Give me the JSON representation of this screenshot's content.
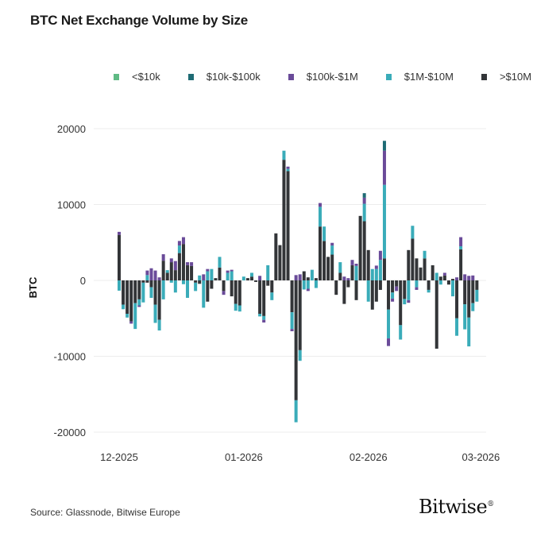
{
  "title": "BTC Net Exchange Volume by Size",
  "source": "Source: Glassnode, Bitwise Europe",
  "logo": "Bitwise",
  "chart_data": {
    "type": "bar",
    "stacked": true,
    "title": "BTC Net Exchange Volume by Size",
    "xlabel": "",
    "ylabel": "BTC",
    "ylim": [
      -20000,
      20000
    ],
    "yticks": [
      20000,
      10000,
      0,
      -10000,
      -20000
    ],
    "xticks": [
      {
        "label": "12-2025",
        "date": "2025-12-01"
      },
      {
        "label": "01-2026",
        "date": "2026-01-01"
      },
      {
        "label": "02-2026",
        "date": "2026-02-01"
      },
      {
        "label": "03-2026",
        "date": "2026-03-01"
      }
    ],
    "grid": "horizontal",
    "legend": "top",
    "categories": [
      "2025-12-01",
      "2025-12-02",
      "2025-12-03",
      "2025-12-04",
      "2025-12-05",
      "2025-12-06",
      "2025-12-07",
      "2025-12-08",
      "2025-12-09",
      "2025-12-10",
      "2025-12-11",
      "2025-12-12",
      "2025-12-13",
      "2025-12-14",
      "2025-12-15",
      "2025-12-16",
      "2025-12-17",
      "2025-12-18",
      "2025-12-19",
      "2025-12-20",
      "2025-12-21",
      "2025-12-22",
      "2025-12-23",
      "2025-12-24",
      "2025-12-25",
      "2025-12-26",
      "2025-12-27",
      "2025-12-28",
      "2025-12-29",
      "2025-12-30",
      "2025-12-31",
      "2026-01-01",
      "2026-01-02",
      "2026-01-03",
      "2026-01-04",
      "2026-01-05",
      "2026-01-06",
      "2026-01-07",
      "2026-01-08",
      "2026-01-09",
      "2026-01-10",
      "2026-01-11",
      "2026-01-12",
      "2026-01-13",
      "2026-01-14",
      "2026-01-15",
      "2026-01-16",
      "2026-01-17",
      "2026-01-18",
      "2026-01-19",
      "2026-01-20",
      "2026-01-21",
      "2026-01-22",
      "2026-01-23",
      "2026-01-24",
      "2026-01-25",
      "2026-01-26",
      "2026-01-27",
      "2026-01-28",
      "2026-01-29",
      "2026-01-30",
      "2026-01-31",
      "2026-02-01",
      "2026-02-02",
      "2026-02-03",
      "2026-02-04",
      "2026-02-05",
      "2026-02-06",
      "2026-02-07",
      "2026-02-08",
      "2026-02-09",
      "2026-02-10",
      "2026-02-11",
      "2026-02-12",
      "2026-02-13",
      "2026-02-14",
      "2026-02-15",
      "2026-02-16",
      "2026-02-17",
      "2026-02-18",
      "2026-02-19",
      "2026-02-20",
      "2026-02-21",
      "2026-02-22",
      "2026-02-23",
      "2026-02-24",
      "2026-02-25",
      "2026-02-26",
      "2026-02-27",
      "2026-02-28"
    ],
    "series": [
      {
        "name": ">$10M",
        "color": "#333538",
        "values": [
          6000,
          -3200,
          -4400,
          -5400,
          -3000,
          -2500,
          -300,
          -300,
          -900,
          -3200,
          -5200,
          2600,
          1000,
          2400,
          1350,
          3600,
          4800,
          2000,
          1900,
          -300,
          -450,
          0,
          -2800,
          -1100,
          300,
          1700,
          -1400,
          0,
          -2100,
          -3100,
          -3300,
          0,
          300,
          500,
          -200,
          -4400,
          -4700,
          -700,
          -1600,
          6200,
          4650,
          15900,
          14400,
          -4200,
          -15800,
          -9200,
          1200,
          400,
          0,
          300,
          7100,
          5200,
          3100,
          3400,
          -1900,
          1000,
          -3100,
          -900,
          2000,
          -2600,
          8500,
          7800,
          4000,
          -3850,
          -2800,
          -1250,
          2900,
          -3850,
          -1600,
          -800,
          -5900,
          -2450,
          4000,
          5500,
          2900,
          1700,
          2900,
          -1250,
          2000,
          -9000,
          500,
          650,
          -550,
          200,
          -5000,
          4100,
          -3150,
          -4900,
          -3000,
          -1250
        ]
      },
      {
        "name": "$1M-$10M",
        "color": "#3aacb9",
        "values": [
          -1350,
          -600,
          -500,
          0,
          -3400,
          -800,
          -2600,
          700,
          -1400,
          -2400,
          -1400,
          -2500,
          350,
          -300,
          -1600,
          1000,
          -500,
          -2300,
          0,
          -1100,
          650,
          -3600,
          1200,
          1500,
          0,
          1400,
          0,
          1000,
          1200,
          -900,
          -800,
          500,
          0,
          500,
          0,
          -350,
          -500,
          2000,
          -1000,
          0,
          0,
          1200,
          300,
          -2200,
          -2900,
          -1400,
          -1200,
          -1100,
          1400,
          -1000,
          2600,
          1900,
          0,
          1200,
          0,
          1400,
          0,
          0,
          0,
          1900,
          0,
          2300,
          -2800,
          1500,
          1500,
          2700,
          9700,
          -3800,
          -800,
          0,
          -1900,
          -700,
          -2600,
          1700,
          -900,
          0,
          1000,
          -350,
          0,
          1000,
          -550,
          0,
          0,
          -2100,
          -2300,
          400,
          -3300,
          -3800,
          -1050,
          -1550
        ]
      },
      {
        "name": "$100k-$1M",
        "color": "#6a4b99",
        "values": [
          400,
          0,
          0,
          -300,
          0,
          -200,
          0,
          600,
          1600,
          1300,
          400,
          850,
          0,
          500,
          1200,
          600,
          900,
          400,
          500,
          0,
          0,
          800,
          300,
          0,
          0,
          0,
          -500,
          300,
          200,
          0,
          0,
          0,
          0,
          0,
          0,
          600,
          -350,
          0,
          0,
          0,
          0,
          0,
          300,
          -300,
          700,
          800,
          0,
          -300,
          0,
          0,
          500,
          0,
          0,
          350,
          0,
          0,
          500,
          300,
          700,
          300,
          0,
          800,
          0,
          0,
          450,
          1200,
          4500,
          -1000,
          -400,
          -600,
          0,
          0,
          -350,
          0,
          -350,
          0,
          0,
          0,
          0,
          0,
          0,
          350,
          0,
          0,
          400,
          1200,
          800,
          600,
          650,
          0
        ]
      },
      {
        "name": "$10k-$100k",
        "color": "#1e6b74",
        "values": [
          0,
          0,
          0,
          0,
          0,
          0,
          0,
          0,
          0,
          0,
          0,
          0,
          0,
          0,
          0,
          0,
          0,
          0,
          0,
          0,
          0,
          0,
          0,
          0,
          0,
          0,
          0,
          0,
          0,
          0,
          0,
          0,
          0,
          0,
          0,
          0,
          0,
          0,
          0,
          0,
          0,
          0,
          0,
          0,
          0,
          0,
          0,
          0,
          0,
          0,
          0,
          0,
          0,
          0,
          0,
          0,
          0,
          0,
          0,
          0,
          0,
          600,
          0,
          0,
          0,
          0,
          1300,
          0,
          0,
          0,
          0,
          0,
          0,
          0,
          0,
          0,
          0,
          0,
          0,
          0,
          0,
          0,
          0,
          0,
          0,
          0,
          0,
          0,
          0,
          0
        ]
      },
      {
        "name": "<$10k",
        "color": "#5fba84",
        "values": [
          0,
          0,
          0,
          0,
          0,
          0,
          0,
          0,
          0,
          0,
          0,
          0,
          0,
          0,
          0,
          0,
          0,
          0,
          0,
          0,
          0,
          0,
          0,
          0,
          0,
          0,
          0,
          0,
          0,
          0,
          0,
          0,
          0,
          0,
          0,
          0,
          0,
          0,
          0,
          0,
          0,
          0,
          0,
          0,
          0,
          0,
          0,
          0,
          0,
          0,
          0,
          0,
          0,
          0,
          0,
          0,
          0,
          0,
          0,
          0,
          0,
          0,
          0,
          0,
          0,
          0,
          0,
          0,
          0,
          0,
          0,
          0,
          0,
          0,
          0,
          0,
          0,
          0,
          0,
          0,
          0,
          0,
          0,
          0,
          0,
          0,
          0,
          0,
          0,
          0
        ]
      }
    ],
    "legend_order": [
      "<$10k",
      "$10k-$100k",
      "$100k-$1M",
      "$1M-$10M",
      ">$10M"
    ]
  }
}
